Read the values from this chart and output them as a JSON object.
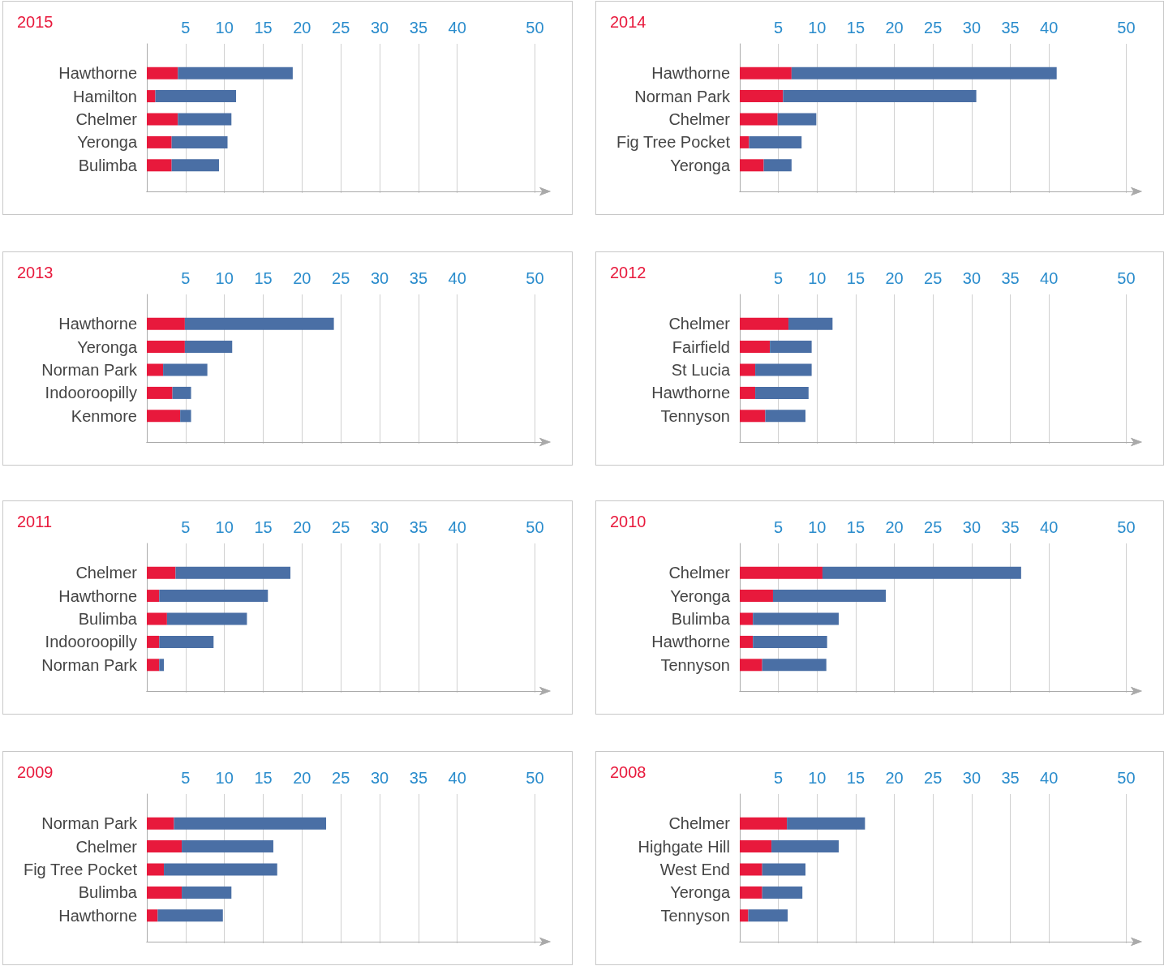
{
  "chart_data": [
    {
      "type": "bar",
      "orientation": "horizontal",
      "stacked": true,
      "title": "2015",
      "categories": [
        "Hawthorne",
        "Hamilton",
        "Chelmer",
        "Yeronga",
        "Bulimba"
      ],
      "series": [
        {
          "color": "#e8193c",
          "values": [
            4.0,
            1.1,
            4.0,
            3.2,
            3.2
          ]
        },
        {
          "color": "#4a6fa5",
          "values": [
            14.8,
            10.4,
            6.9,
            7.2,
            6.1
          ]
        }
      ],
      "xlim": [
        0,
        51
      ],
      "xticks": [
        5,
        10,
        15,
        20,
        25,
        30,
        35,
        40,
        50
      ],
      "grid": "x"
    },
    {
      "type": "bar",
      "orientation": "horizontal",
      "stacked": true,
      "title": "2014",
      "categories": [
        "Hawthorne",
        "Norman Park",
        "Chelmer",
        "Fig Tree Pocket",
        "Yeronga"
      ],
      "series": [
        {
          "color": "#e8193c",
          "values": [
            6.7,
            5.6,
            4.9,
            1.2,
            3.1
          ]
        },
        {
          "color": "#4a6fa5",
          "values": [
            34.3,
            25.0,
            5.0,
            6.8,
            3.6
          ]
        }
      ],
      "xlim": [
        0,
        51
      ],
      "xticks": [
        5,
        10,
        15,
        20,
        25,
        30,
        35,
        40,
        50
      ],
      "grid": "x"
    },
    {
      "type": "bar",
      "orientation": "horizontal",
      "stacked": true,
      "title": "2013",
      "categories": [
        "Hawthorne",
        "Yeronga",
        "Norman Park",
        "Indooroopilly",
        "Kenmore"
      ],
      "series": [
        {
          "color": "#e8193c",
          "values": [
            4.9,
            4.9,
            2.1,
            3.3,
            4.3
          ]
        },
        {
          "color": "#4a6fa5",
          "values": [
            19.2,
            6.1,
            5.7,
            2.4,
            1.4
          ]
        }
      ],
      "xlim": [
        0,
        51
      ],
      "xticks": [
        5,
        10,
        15,
        20,
        25,
        30,
        35,
        40,
        50
      ],
      "grid": "x"
    },
    {
      "type": "bar",
      "orientation": "horizontal",
      "stacked": true,
      "title": "2012",
      "categories": [
        "Chelmer",
        "Fairfield",
        "St Lucia",
        "Hawthorne",
        "Tennyson"
      ],
      "series": [
        {
          "color": "#e8193c",
          "values": [
            6.3,
            3.9,
            2.0,
            2.0,
            3.3
          ]
        },
        {
          "color": "#4a6fa5",
          "values": [
            5.7,
            5.4,
            7.3,
            6.9,
            5.2
          ]
        }
      ],
      "xlim": [
        0,
        51
      ],
      "xticks": [
        5,
        10,
        15,
        20,
        25,
        30,
        35,
        40,
        50
      ],
      "grid": "x"
    },
    {
      "type": "bar",
      "orientation": "horizontal",
      "stacked": true,
      "title": "2011",
      "categories": [
        "Chelmer",
        "Hawthorne",
        "Bulimba",
        "Indooroopilly",
        "Norman Park"
      ],
      "series": [
        {
          "color": "#e8193c",
          "values": [
            3.7,
            1.6,
            2.6,
            1.6,
            1.6
          ]
        },
        {
          "color": "#4a6fa5",
          "values": [
            14.8,
            14.0,
            10.3,
            7.0,
            0.6
          ]
        }
      ],
      "xlim": [
        0,
        51
      ],
      "xticks": [
        5,
        10,
        15,
        20,
        25,
        30,
        35,
        40,
        50
      ],
      "grid": "x"
    },
    {
      "type": "bar",
      "orientation": "horizontal",
      "stacked": true,
      "title": "2010",
      "categories": [
        "Chelmer",
        "Yeronga",
        "Bulimba",
        "Hawthorne",
        "Tennyson"
      ],
      "series": [
        {
          "color": "#e8193c",
          "values": [
            10.7,
            4.3,
            1.7,
            1.7,
            2.9
          ]
        },
        {
          "color": "#4a6fa5",
          "values": [
            25.7,
            14.6,
            11.1,
            9.6,
            8.3
          ]
        }
      ],
      "xlim": [
        0,
        51
      ],
      "xticks": [
        5,
        10,
        15,
        20,
        25,
        30,
        35,
        40,
        50
      ],
      "grid": "x"
    },
    {
      "type": "bar",
      "orientation": "horizontal",
      "stacked": true,
      "title": "2009",
      "categories": [
        "Norman Park",
        "Chelmer",
        "Fig Tree Pocket",
        "Bulimba",
        "Hawthorne"
      ],
      "series": [
        {
          "color": "#e8193c",
          "values": [
            3.5,
            4.5,
            2.2,
            4.5,
            1.4
          ]
        },
        {
          "color": "#4a6fa5",
          "values": [
            19.6,
            11.8,
            14.6,
            6.4,
            8.4
          ]
        }
      ],
      "xlim": [
        0,
        51
      ],
      "xticks": [
        5,
        10,
        15,
        20,
        25,
        30,
        35,
        40,
        50
      ],
      "grid": "x"
    },
    {
      "type": "bar",
      "orientation": "horizontal",
      "stacked": true,
      "title": "2008",
      "categories": [
        "Chelmer",
        "Highgate Hill",
        "West End",
        "Yeronga",
        "Tennyson"
      ],
      "series": [
        {
          "color": "#e8193c",
          "values": [
            6.1,
            4.1,
            2.9,
            2.9,
            1.1
          ]
        },
        {
          "color": "#4a6fa5",
          "values": [
            10.1,
            8.7,
            5.6,
            5.2,
            5.1
          ]
        }
      ],
      "xlim": [
        0,
        51
      ],
      "xticks": [
        5,
        10,
        15,
        20,
        25,
        30,
        35,
        40,
        50
      ],
      "grid": "x"
    }
  ]
}
